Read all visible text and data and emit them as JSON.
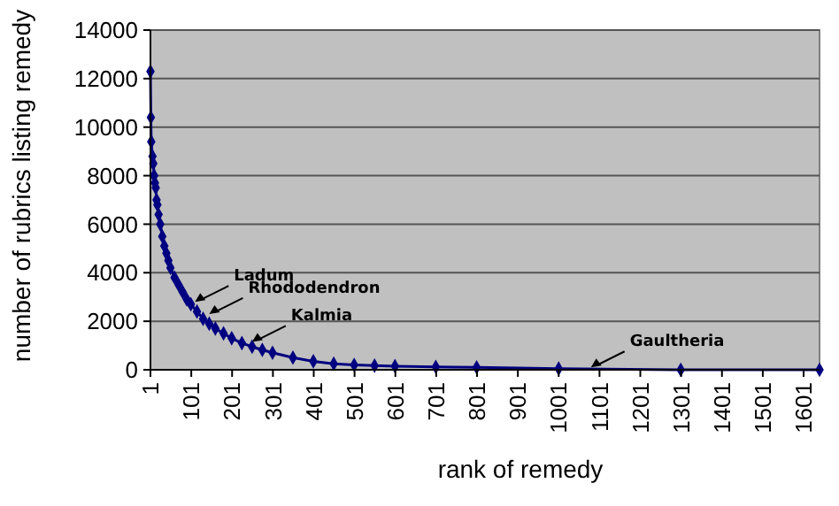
{
  "chart_data": {
    "type": "line",
    "xlabel": "rank of remedy",
    "ylabel": "number of rubrics listing remedy",
    "x": [
      1,
      2,
      3,
      6,
      8,
      10,
      12,
      14,
      16,
      18,
      21,
      25,
      30,
      35,
      40,
      45,
      50,
      60,
      70,
      80,
      90,
      100,
      115,
      130,
      145,
      160,
      180,
      200,
      225,
      250,
      275,
      300,
      350,
      400,
      450,
      500,
      550,
      600,
      700,
      800,
      1001,
      1300,
      1640
    ],
    "series": [
      {
        "color": "#000080",
        "values": [
          12300,
          10400,
          9400,
          8800,
          8500,
          8000,
          7700,
          7500,
          7000,
          6800,
          6400,
          6000,
          5500,
          5100,
          4800,
          4500,
          4200,
          3800,
          3500,
          3200,
          2900,
          2700,
          2400,
          2100,
          1900,
          1700,
          1500,
          1300,
          1100,
          950,
          820,
          700,
          500,
          350,
          250,
          200,
          170,
          150,
          120,
          100,
          50,
          0,
          0
        ]
      }
    ],
    "xlim": [
      1,
      1640
    ],
    "xticks": [
      1,
      101,
      201,
      301,
      401,
      501,
      601,
      701,
      801,
      901,
      1001,
      1101,
      1201,
      1301,
      1401,
      1501,
      1601
    ],
    "ylim": [
      0,
      14000
    ],
    "yticks": [
      0,
      2000,
      4000,
      6000,
      8000,
      10000,
      12000,
      14000
    ],
    "grid": "y",
    "marker": "diamond",
    "line_style": "solid",
    "annotations": [
      {
        "text": "Ladum",
        "x": 110,
        "y": 2800
      },
      {
        "text": "Rhododendron",
        "x": 145,
        "y": 2300
      },
      {
        "text": "Kalmia",
        "x": 250,
        "y": 1150
      },
      {
        "text": "Gaultheria",
        "x": 1080,
        "y": 100
      }
    ]
  }
}
